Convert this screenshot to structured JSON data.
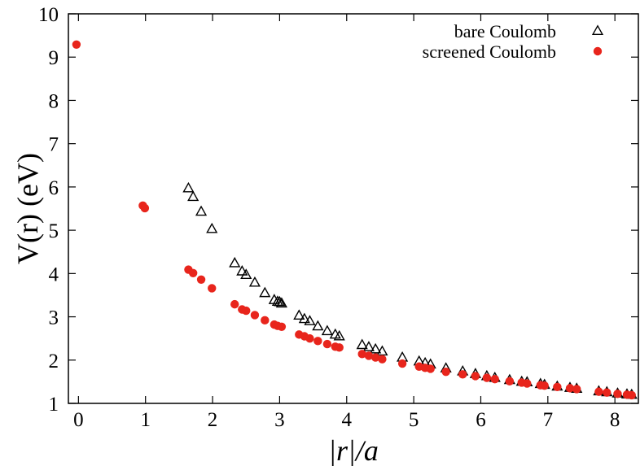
{
  "chart_data": {
    "type": "scatter",
    "title": "",
    "xlabel": "|r|/a",
    "ylabel": "V(r) (eV)",
    "xlim": [
      -0.15,
      8.35
    ],
    "ylim": [
      1,
      10
    ],
    "xticks": [
      "0",
      "1",
      "2",
      "3",
      "4",
      "5",
      "6",
      "7",
      "8"
    ],
    "yticks": [
      "1",
      "2",
      "3",
      "4",
      "5",
      "6",
      "7",
      "8",
      "9",
      "10"
    ],
    "grid": false,
    "legend_position": "top-right",
    "series": [
      {
        "name": "bare Coulomb",
        "marker": "open-triangle",
        "color": "#000000",
        "points": [
          [
            1.64,
            5.97
          ],
          [
            1.71,
            5.77
          ],
          [
            1.83,
            5.43
          ],
          [
            1.99,
            5.03
          ],
          [
            2.33,
            4.24
          ],
          [
            2.44,
            4.05
          ],
          [
            2.5,
            3.97
          ],
          [
            2.63,
            3.79
          ],
          [
            2.78,
            3.55
          ],
          [
            2.92,
            3.39
          ],
          [
            2.97,
            3.35
          ],
          [
            3.0,
            3.34
          ],
          [
            3.03,
            3.31
          ],
          [
            3.29,
            3.03
          ],
          [
            3.37,
            2.95
          ],
          [
            3.45,
            2.9
          ],
          [
            3.57,
            2.78
          ],
          [
            3.71,
            2.67
          ],
          [
            3.83,
            2.59
          ],
          [
            3.89,
            2.55
          ],
          [
            4.23,
            2.35
          ],
          [
            4.33,
            2.3
          ],
          [
            4.43,
            2.25
          ],
          [
            4.53,
            2.2
          ],
          [
            4.83,
            2.06
          ],
          [
            5.08,
            1.97
          ],
          [
            5.17,
            1.93
          ],
          [
            5.25,
            1.9
          ],
          [
            5.48,
            1.81
          ],
          [
            5.73,
            1.74
          ],
          [
            5.92,
            1.68
          ],
          [
            6.09,
            1.63
          ],
          [
            6.21,
            1.59
          ],
          [
            6.43,
            1.54
          ],
          [
            6.61,
            1.5
          ],
          [
            6.69,
            1.49
          ],
          [
            6.89,
            1.45
          ],
          [
            6.95,
            1.43
          ],
          [
            7.14,
            1.39
          ],
          [
            7.33,
            1.36
          ],
          [
            7.43,
            1.34
          ],
          [
            7.76,
            1.28
          ],
          [
            7.88,
            1.26
          ],
          [
            8.04,
            1.23
          ],
          [
            8.18,
            1.21
          ],
          [
            8.25,
            1.2
          ]
        ]
      },
      {
        "name": "screened Coulomb",
        "marker": "filled-circle",
        "color": "#e8251c",
        "points": [
          [
            -0.03,
            9.29
          ],
          [
            0.96,
            5.57
          ],
          [
            0.99,
            5.51
          ],
          [
            1.64,
            4.09
          ],
          [
            1.71,
            4.01
          ],
          [
            1.83,
            3.86
          ],
          [
            1.99,
            3.66
          ],
          [
            2.33,
            3.29
          ],
          [
            2.44,
            3.17
          ],
          [
            2.5,
            3.14
          ],
          [
            2.63,
            3.04
          ],
          [
            2.78,
            2.92
          ],
          [
            2.92,
            2.82
          ],
          [
            2.97,
            2.79
          ],
          [
            3.03,
            2.77
          ],
          [
            3.29,
            2.59
          ],
          [
            3.37,
            2.55
          ],
          [
            3.45,
            2.5
          ],
          [
            3.57,
            2.44
          ],
          [
            3.71,
            2.37
          ],
          [
            3.83,
            2.31
          ],
          [
            3.89,
            2.29
          ],
          [
            4.23,
            2.14
          ],
          [
            4.33,
            2.1
          ],
          [
            4.43,
            2.06
          ],
          [
            4.53,
            2.02
          ],
          [
            4.83,
            1.92
          ],
          [
            5.08,
            1.85
          ],
          [
            5.17,
            1.82
          ],
          [
            5.25,
            1.8
          ],
          [
            5.48,
            1.73
          ],
          [
            5.73,
            1.67
          ],
          [
            5.92,
            1.63
          ],
          [
            6.09,
            1.59
          ],
          [
            6.21,
            1.56
          ],
          [
            6.43,
            1.51
          ],
          [
            6.61,
            1.48
          ],
          [
            6.69,
            1.46
          ],
          [
            6.89,
            1.42
          ],
          [
            6.95,
            1.41
          ],
          [
            7.14,
            1.38
          ],
          [
            7.33,
            1.35
          ],
          [
            7.43,
            1.33
          ],
          [
            7.76,
            1.27
          ],
          [
            7.88,
            1.25
          ],
          [
            8.04,
            1.22
          ],
          [
            8.18,
            1.2
          ],
          [
            8.25,
            1.19
          ]
        ]
      }
    ]
  }
}
